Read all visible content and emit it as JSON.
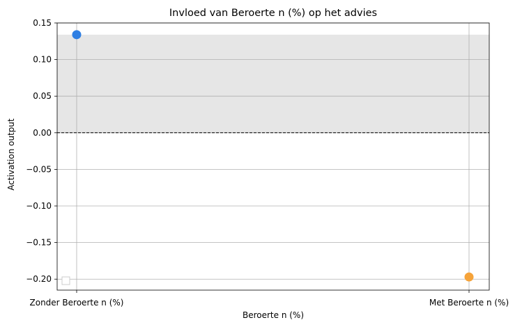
{
  "chart_data": {
    "type": "scatter",
    "title": "Invloed van Beroerte n (%) op het advies",
    "xlabel": "Beroerte n (%)",
    "ylabel": "Activation output",
    "categories": [
      "Zonder Beroerte n (%)",
      "Met Beroerte n (%)"
    ],
    "points": [
      {
        "category": "Zonder Beroerte n (%)",
        "value": 0.134,
        "color": "#2f7fe3"
      },
      {
        "category": "Met Beroerte n (%)",
        "value": -0.197,
        "color": "#f5a33a"
      }
    ],
    "ylim": [
      -0.215,
      0.15
    ],
    "yticks": [
      "0.15",
      "0.10",
      "0.05",
      "0.00",
      "−0.05",
      "−0.10",
      "−0.15",
      "−0.20"
    ],
    "ytick_values": [
      0.15,
      0.1,
      0.05,
      0.0,
      -0.05,
      -0.1,
      -0.15,
      -0.2
    ],
    "baseline": 0.0,
    "shaded_band": [
      0.0,
      0.134
    ],
    "band_color": "#e6e6e6",
    "grid": true,
    "legend": "lower-left (empty)"
  }
}
